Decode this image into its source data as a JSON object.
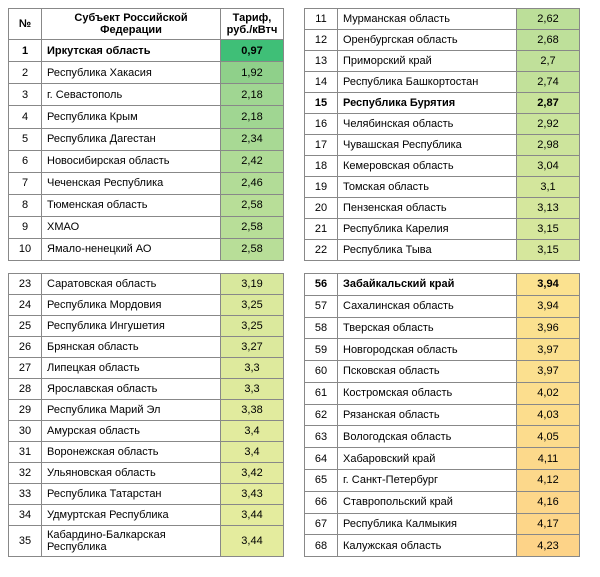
{
  "headers": {
    "num": "№",
    "name": "Субъект Российской Федерации",
    "val": "Тариф, руб./кВтч"
  },
  "tables": {
    "t1": [
      {
        "n": "1",
        "name": "Иркутская область",
        "v": "0,97",
        "c": "#3fbf77",
        "bold": true
      },
      {
        "n": "2",
        "name": "Республика Хакасия",
        "v": "1,92",
        "c": "#8fd08a"
      },
      {
        "n": "3",
        "name": "г. Севастополь",
        "v": "2,18",
        "c": "#a0d692"
      },
      {
        "n": "4",
        "name": "Республика Крым",
        "v": "2,18",
        "c": "#a0d692"
      },
      {
        "n": "5",
        "name": "Республика Дагестан",
        "v": "2,34",
        "c": "#a8d994"
      },
      {
        "n": "6",
        "name": "Новосибирская область",
        "v": "2,42",
        "c": "#afdb96"
      },
      {
        "n": "7",
        "name": "Чеченская Республика",
        "v": "2,46",
        "c": "#b2dc97"
      },
      {
        "n": "8",
        "name": "Тюменская область",
        "v": "2,58",
        "c": "#b8de98"
      },
      {
        "n": "9",
        "name": "ХМАО",
        "v": "2,58",
        "c": "#b8de98"
      },
      {
        "n": "10",
        "name": "Ямало-ненецкий АО",
        "v": "2,58",
        "c": "#b8de98"
      }
    ],
    "t2": [
      {
        "n": "11",
        "name": "Мурманская область",
        "v": "2,62",
        "c": "#bcdf99"
      },
      {
        "n": "12",
        "name": "Оренбургская область",
        "v": "2,68",
        "c": "#bee09a"
      },
      {
        "n": "13",
        "name": "Приморский край",
        "v": "2,7",
        "c": "#c0e09a"
      },
      {
        "n": "14",
        "name": "Республика Башкортостан",
        "v": "2,74",
        "c": "#c2e19a"
      },
      {
        "n": "15",
        "name": "Республика Бурятия",
        "v": "2,87",
        "c": "#c8e39b",
        "bold": true
      },
      {
        "n": "16",
        "name": "Челябинская область",
        "v": "2,92",
        "c": "#cae49c"
      },
      {
        "n": "17",
        "name": "Чувашская Республика",
        "v": "2,98",
        "c": "#cde49c"
      },
      {
        "n": "18",
        "name": "Кемеровская область",
        "v": "3,04",
        "c": "#d0e59c"
      },
      {
        "n": "19",
        "name": "Томская область",
        "v": "3,1",
        "c": "#d3e69c"
      },
      {
        "n": "20",
        "name": "Пензенская область",
        "v": "3,13",
        "c": "#d5e79d"
      },
      {
        "n": "21",
        "name": "Республика Карелия",
        "v": "3,15",
        "c": "#d6e79d"
      },
      {
        "n": "22",
        "name": "Республика Тыва",
        "v": "3,15",
        "c": "#d6e79d"
      }
    ],
    "t3": [
      {
        "n": "23",
        "name": "Саратовская область",
        "v": "3,19",
        "c": "#d8e89d"
      },
      {
        "n": "24",
        "name": "Республика Мордовия",
        "v": "3,25",
        "c": "#dbe99d"
      },
      {
        "n": "25",
        "name": "Республика Ингушетия",
        "v": "3,25",
        "c": "#dbe99d"
      },
      {
        "n": "26",
        "name": "Брянская область",
        "v": "3,27",
        "c": "#dce99d"
      },
      {
        "n": "27",
        "name": "Липецкая область",
        "v": "3,3",
        "c": "#deea9d"
      },
      {
        "n": "28",
        "name": "Ярославская область",
        "v": "3,3",
        "c": "#deea9d"
      },
      {
        "n": "29",
        "name": "Республика Марий Эл",
        "v": "3,38",
        "c": "#e1eb9e"
      },
      {
        "n": "30",
        "name": "Амурская область",
        "v": "3,4",
        "c": "#e2eb9e"
      },
      {
        "n": "31",
        "name": "Воронежская область",
        "v": "3,4",
        "c": "#e2eb9e"
      },
      {
        "n": "32",
        "name": "Ульяновская область",
        "v": "3,42",
        "c": "#e3eb9e"
      },
      {
        "n": "33",
        "name": "Республика Татарстан",
        "v": "3,43",
        "c": "#e4ec9e"
      },
      {
        "n": "34",
        "name": "Удмуртская Республика",
        "v": "3,44",
        "c": "#e4ec9e"
      },
      {
        "n": "35",
        "name": "Кабардино-Балкарская Республика",
        "v": "3,44",
        "c": "#e4ec9e"
      }
    ],
    "t4": [
      {
        "n": "56",
        "name": "Забайкальский край",
        "v": "3,94",
        "c": "#fbe290",
        "bold": true
      },
      {
        "n": "57",
        "name": "Сахалинская область",
        "v": "3,94",
        "c": "#fbe290"
      },
      {
        "n": "58",
        "name": "Тверская область",
        "v": "3,96",
        "c": "#fbe18f"
      },
      {
        "n": "59",
        "name": "Новгородская область",
        "v": "3,97",
        "c": "#fbe08f"
      },
      {
        "n": "60",
        "name": "Псковская область",
        "v": "3,97",
        "c": "#fbe08f"
      },
      {
        "n": "61",
        "name": "Костромская область",
        "v": "4,02",
        "c": "#fcde8e"
      },
      {
        "n": "62",
        "name": "Рязанская область",
        "v": "4,03",
        "c": "#fcdd8d"
      },
      {
        "n": "63",
        "name": "Вологодская область",
        "v": "4,05",
        "c": "#fcdc8d"
      },
      {
        "n": "64",
        "name": "Хабаровский край",
        "v": "4,11",
        "c": "#fcd98b"
      },
      {
        "n": "65",
        "name": "г. Санкт-Петербург",
        "v": "4,12",
        "c": "#fcd88b"
      },
      {
        "n": "66",
        "name": "Ставропольский край",
        "v": "4,16",
        "c": "#fdd78a"
      },
      {
        "n": "67",
        "name": "Республика Калмыкия",
        "v": "4,17",
        "c": "#fdd689"
      },
      {
        "n": "68",
        "name": "Калужская область",
        "v": "4,23",
        "c": "#fdd388"
      }
    ]
  }
}
